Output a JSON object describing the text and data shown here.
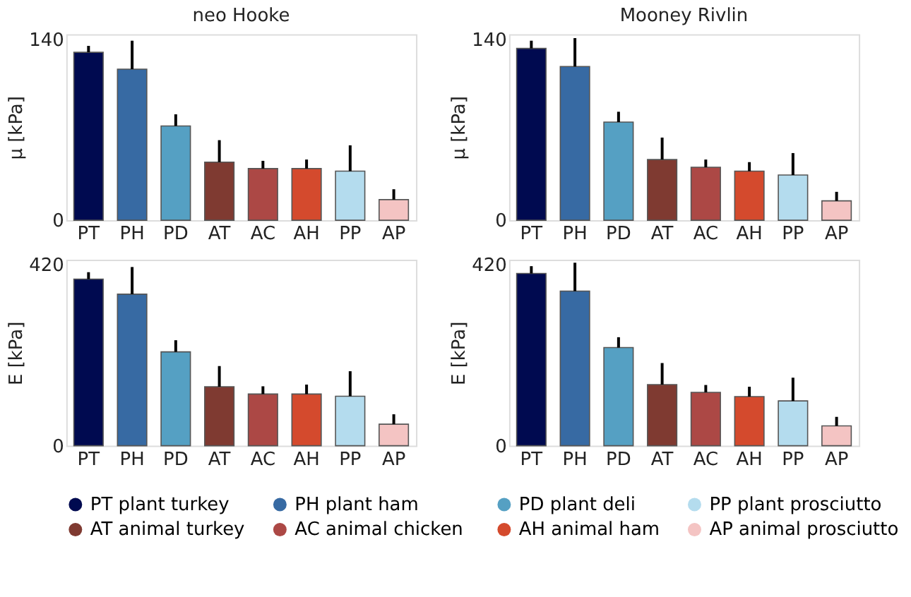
{
  "chart_data": [
    {
      "type": "bar",
      "title": "neo Hooke",
      "ylabel": "μ [kPa]",
      "categories": [
        "PT",
        "PH",
        "PD",
        "AT",
        "AC",
        "AH",
        "PP",
        "AP"
      ],
      "ylim": [
        0,
        144
      ],
      "yticks": [
        0,
        140
      ],
      "grid": false,
      "legend": "bottom",
      "series": [
        {
          "name": "PT plant turkey",
          "color": "#000a50",
          "values": [
            130,
            null,
            null,
            null,
            null,
            null,
            null,
            null
          ],
          "errors": [
            [
              130,
              135
            ],
            null,
            null,
            null,
            null,
            null,
            null,
            null
          ]
        },
        {
          "name": "PH plant ham",
          "color": "#376aa3",
          "values": [
            null,
            117,
            null,
            null,
            null,
            null,
            null,
            null
          ],
          "errors": [
            null,
            [
              117,
              139
            ],
            null,
            null,
            null,
            null,
            null,
            null
          ]
        },
        {
          "name": "PD plant deli",
          "color": "#55a0c3",
          "values": [
            null,
            null,
            73,
            null,
            null,
            null,
            null,
            null
          ],
          "errors": [
            null,
            null,
            [
              73,
              82
            ],
            null,
            null,
            null,
            null,
            null
          ]
        },
        {
          "name": "PP  plant prosciutto",
          "color": "#b4dcee",
          "values": [
            null,
            null,
            null,
            null,
            null,
            null,
            38,
            null
          ],
          "errors": [
            null,
            null,
            null,
            null,
            null,
            null,
            [
              38,
              58
            ],
            null
          ]
        },
        {
          "name": "AT animal turkey",
          "color": "#7f3a31",
          "values": [
            null,
            null,
            null,
            45,
            null,
            null,
            null,
            null
          ],
          "errors": [
            null,
            null,
            null,
            [
              45,
              62
            ],
            null,
            null,
            null,
            null
          ]
        },
        {
          "name": "AC  animal chicken",
          "color": "#ac4845",
          "values": [
            null,
            null,
            null,
            null,
            40,
            null,
            null,
            null
          ],
          "errors": [
            null,
            null,
            null,
            null,
            [
              40,
              46
            ],
            null,
            null,
            null
          ]
        },
        {
          "name": "AH animal ham",
          "color": "#d44a2d",
          "values": [
            null,
            null,
            null,
            null,
            null,
            40,
            null,
            null
          ],
          "errors": [
            null,
            null,
            null,
            null,
            null,
            [
              40,
              47
            ],
            null,
            null
          ]
        },
        {
          "name": "AP  animal prosciutto",
          "color": "#f4c4c3",
          "values": [
            null,
            null,
            null,
            null,
            null,
            null,
            null,
            16
          ],
          "errors": [
            null,
            null,
            null,
            null,
            null,
            null,
            null,
            [
              16,
              24
            ]
          ]
        }
      ]
    },
    {
      "type": "bar",
      "title": "Mooney Rivlin",
      "ylabel": "μ [kPa]",
      "categories": [
        "PT",
        "PH",
        "PD",
        "AT",
        "AC",
        "AH",
        "PP",
        "AP"
      ],
      "ylim": [
        0,
        144
      ],
      "yticks": [
        0,
        140
      ],
      "grid": false,
      "legend": "bottom",
      "series": [
        {
          "name": "PT plant turkey",
          "color": "#000a50",
          "values": [
            133,
            null,
            null,
            null,
            null,
            null,
            null,
            null
          ],
          "errors": [
            [
              133,
              139
            ],
            null,
            null,
            null,
            null,
            null,
            null,
            null
          ]
        },
        {
          "name": "PH plant ham",
          "color": "#376aa3",
          "values": [
            null,
            119,
            null,
            null,
            null,
            null,
            null,
            null
          ],
          "errors": [
            null,
            [
              119,
              141
            ],
            null,
            null,
            null,
            null,
            null,
            null
          ]
        },
        {
          "name": "PD plant deli",
          "color": "#55a0c3",
          "values": [
            null,
            null,
            76,
            null,
            null,
            null,
            null,
            null
          ],
          "errors": [
            null,
            null,
            [
              76,
              84
            ],
            null,
            null,
            null,
            null,
            null
          ]
        },
        {
          "name": "PP  plant prosciutto",
          "color": "#b4dcee",
          "values": [
            null,
            null,
            null,
            null,
            null,
            null,
            35,
            null
          ],
          "errors": [
            null,
            null,
            null,
            null,
            null,
            null,
            [
              35,
              52
            ],
            null
          ]
        },
        {
          "name": "AT animal turkey",
          "color": "#7f3a31",
          "values": [
            null,
            null,
            null,
            47,
            null,
            null,
            null,
            null
          ],
          "errors": [
            null,
            null,
            null,
            [
              47,
              64
            ],
            null,
            null,
            null,
            null
          ]
        },
        {
          "name": "AC  animal chicken",
          "color": "#ac4845",
          "values": [
            null,
            null,
            null,
            null,
            41,
            null,
            null,
            null
          ],
          "errors": [
            null,
            null,
            null,
            null,
            [
              41,
              47
            ],
            null,
            null,
            null
          ]
        },
        {
          "name": "AH animal ham",
          "color": "#d44a2d",
          "values": [
            null,
            null,
            null,
            null,
            null,
            38,
            null,
            null
          ],
          "errors": [
            null,
            null,
            null,
            null,
            null,
            [
              38,
              45
            ],
            null,
            null
          ]
        },
        {
          "name": "AP  animal prosciutto",
          "color": "#f4c4c3",
          "values": [
            null,
            null,
            null,
            null,
            null,
            null,
            null,
            15
          ],
          "errors": [
            null,
            null,
            null,
            null,
            null,
            null,
            null,
            [
              15,
              22
            ]
          ]
        }
      ]
    },
    {
      "type": "bar",
      "ylabel": "E [kPa]",
      "categories": [
        "PT",
        "PH",
        "PD",
        "AT",
        "AC",
        "AH",
        "PP",
        "AP"
      ],
      "ylim": [
        0,
        432
      ],
      "yticks": [
        0,
        420
      ],
      "grid": false,
      "legend": "bottom",
      "series": [
        {
          "name": "PT plant turkey",
          "color": "#000a50",
          "values": [
            387,
            null,
            null,
            null,
            null,
            null,
            null,
            null
          ],
          "errors": [
            [
              387,
              403
            ],
            null,
            null,
            null,
            null,
            null,
            null,
            null
          ]
        },
        {
          "name": "PH plant ham",
          "color": "#376aa3",
          "values": [
            null,
            352,
            null,
            null,
            null,
            null,
            null,
            null
          ],
          "errors": [
            null,
            [
              352,
              415
            ],
            null,
            null,
            null,
            null,
            null,
            null
          ]
        },
        {
          "name": "PD plant deli",
          "color": "#55a0c3",
          "values": [
            null,
            null,
            218,
            null,
            null,
            null,
            null,
            null
          ],
          "errors": [
            null,
            null,
            [
              218,
              245
            ],
            null,
            null,
            null,
            null,
            null
          ]
        },
        {
          "name": "PP  plant prosciutto",
          "color": "#b4dcee",
          "values": [
            null,
            null,
            null,
            null,
            null,
            null,
            115,
            null
          ],
          "errors": [
            null,
            null,
            null,
            null,
            null,
            null,
            [
              115,
              173
            ],
            null
          ]
        },
        {
          "name": "AT animal turkey",
          "color": "#7f3a31",
          "values": [
            null,
            null,
            null,
            137,
            null,
            null,
            null,
            null
          ],
          "errors": [
            null,
            null,
            null,
            [
              137,
              185
            ],
            null,
            null,
            null,
            null
          ]
        },
        {
          "name": "AC  animal chicken",
          "color": "#ac4845",
          "values": [
            null,
            null,
            null,
            null,
            120,
            null,
            null,
            null
          ],
          "errors": [
            null,
            null,
            null,
            null,
            [
              120,
              138
            ],
            null,
            null,
            null
          ]
        },
        {
          "name": "AH animal ham",
          "color": "#d44a2d",
          "values": [
            null,
            null,
            null,
            null,
            null,
            120,
            null,
            null
          ],
          "errors": [
            null,
            null,
            null,
            null,
            null,
            [
              120,
              142
            ],
            null,
            null
          ]
        },
        {
          "name": "AP  animal prosciutto",
          "color": "#f4c4c3",
          "values": [
            null,
            null,
            null,
            null,
            null,
            null,
            null,
            50
          ],
          "errors": [
            null,
            null,
            null,
            null,
            null,
            null,
            null,
            [
              50,
              73
            ]
          ]
        }
      ]
    },
    {
      "type": "bar",
      "ylabel": "E [kPa]",
      "categories": [
        "PT",
        "PH",
        "PD",
        "AT",
        "AC",
        "AH",
        "PP",
        "AP"
      ],
      "ylim": [
        0,
        432
      ],
      "yticks": [
        0,
        420
      ],
      "grid": false,
      "legend": "bottom",
      "series": [
        {
          "name": "PT plant turkey",
          "color": "#000a50",
          "values": [
            400,
            null,
            null,
            null,
            null,
            null,
            null,
            null
          ],
          "errors": [
            [
              400,
              417
            ],
            null,
            null,
            null,
            null,
            null,
            null,
            null
          ]
        },
        {
          "name": "PH plant ham",
          "color": "#376aa3",
          "values": [
            null,
            359,
            null,
            null,
            null,
            null,
            null,
            null
          ],
          "errors": [
            null,
            [
              359,
              425
            ],
            null,
            null,
            null,
            null,
            null,
            null
          ]
        },
        {
          "name": "PD plant deli",
          "color": "#55a0c3",
          "values": [
            null,
            null,
            228,
            null,
            null,
            null,
            null,
            null
          ],
          "errors": [
            null,
            null,
            [
              228,
              252
            ],
            null,
            null,
            null,
            null,
            null
          ]
        },
        {
          "name": "PP  plant prosciutto",
          "color": "#b4dcee",
          "values": [
            null,
            null,
            null,
            null,
            null,
            null,
            104,
            null
          ],
          "errors": [
            null,
            null,
            null,
            null,
            null,
            null,
            [
              104,
              158
            ],
            null
          ]
        },
        {
          "name": "AT animal turkey",
          "color": "#7f3a31",
          "values": [
            null,
            null,
            null,
            142,
            null,
            null,
            null,
            null
          ],
          "errors": [
            null,
            null,
            null,
            [
              142,
              192
            ],
            null,
            null,
            null,
            null
          ]
        },
        {
          "name": "AC  animal chicken",
          "color": "#ac4845",
          "values": [
            null,
            null,
            null,
            null,
            124,
            null,
            null,
            null
          ],
          "errors": [
            null,
            null,
            null,
            null,
            [
              124,
              141
            ],
            null,
            null,
            null
          ]
        },
        {
          "name": "AH animal ham",
          "color": "#d44a2d",
          "values": [
            null,
            null,
            null,
            null,
            null,
            114,
            null,
            null
          ],
          "errors": [
            null,
            null,
            null,
            null,
            null,
            [
              114,
              137
            ],
            null,
            null
          ]
        },
        {
          "name": "AP  animal prosciutto",
          "color": "#f4c4c3",
          "values": [
            null,
            null,
            null,
            null,
            null,
            null,
            null,
            46
          ],
          "errors": [
            null,
            null,
            null,
            null,
            null,
            null,
            null,
            [
              46,
              67
            ]
          ]
        }
      ]
    }
  ]
}
